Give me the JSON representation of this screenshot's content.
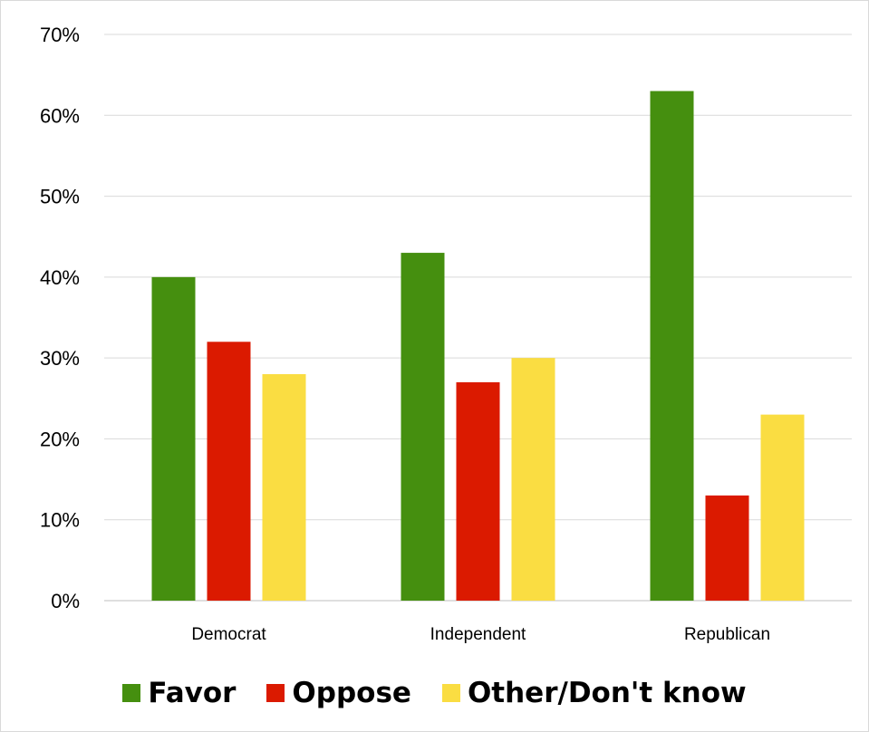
{
  "chart_data": {
    "type": "bar",
    "categories": [
      "Democrat",
      "Independent",
      "Republican"
    ],
    "series": [
      {
        "name": "Favor",
        "color": "#458f0f",
        "values": [
          40,
          43,
          63
        ]
      },
      {
        "name": "Oppose",
        "color": "#db1a00",
        "values": [
          32,
          27,
          13
        ]
      },
      {
        "name": "Other/Don't know",
        "color": "#fadd42",
        "values": [
          28,
          30,
          23
        ]
      }
    ],
    "ylim": [
      0,
      70
    ],
    "yticks": [
      "0%",
      "10%",
      "20%",
      "30%",
      "40%",
      "50%",
      "60%",
      "70%"
    ],
    "y_unit": "%",
    "grid": true,
    "legend_position": "bottom",
    "title": "",
    "xlabel": "",
    "ylabel": ""
  }
}
